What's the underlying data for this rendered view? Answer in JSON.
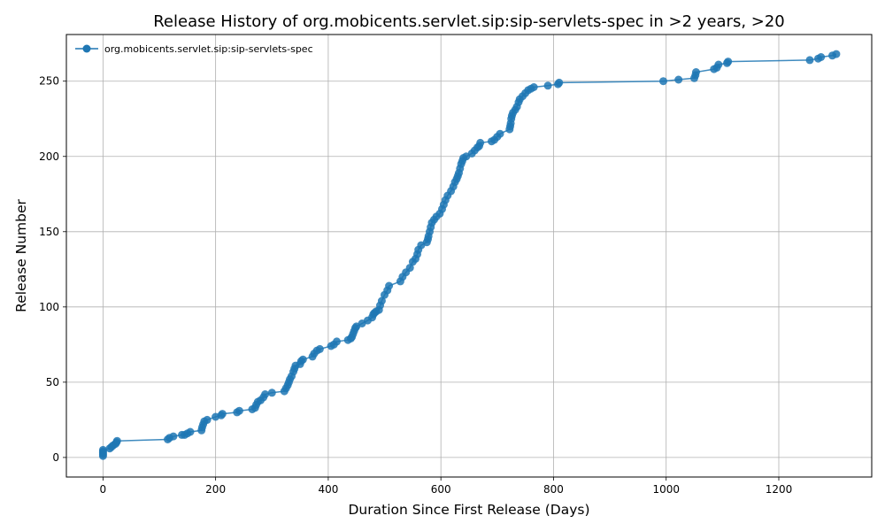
{
  "chart_data": {
    "type": "line",
    "title": "Release History of org.mobicents.servlet.sip:sip-servlets-spec in >2 years, >20",
    "xlabel": "Duration Since First Release (Days)",
    "ylabel": "Release Number",
    "xlim": [
      -65,
      1365
    ],
    "ylim": [
      -13,
      281
    ],
    "xticks": [
      0,
      200,
      400,
      600,
      800,
      1000,
      1200
    ],
    "yticks": [
      0,
      50,
      100,
      150,
      200,
      250
    ],
    "grid": true,
    "legend_position": "top-left",
    "series": [
      {
        "name": "org.mobicents.servlet.sip:sip-servlets-spec",
        "color": "#1f77b4",
        "x": [
          0,
          0,
          0,
          0,
          0,
          12,
          15,
          18,
          22,
          24,
          25,
          115,
          118,
          125,
          140,
          145,
          150,
          155,
          175,
          176,
          178,
          180,
          185,
          200,
          210,
          212,
          238,
          242,
          265,
          270,
          272,
          275,
          280,
          285,
          288,
          300,
          322,
          325,
          328,
          330,
          332,
          335,
          338,
          340,
          342,
          350,
          352,
          355,
          372,
          375,
          380,
          385,
          405,
          410,
          415,
          435,
          440,
          442,
          444,
          446,
          448,
          450,
          460,
          470,
          478,
          480,
          482,
          485,
          490,
          492,
          495,
          500,
          505,
          508,
          528,
          532,
          538,
          545,
          550,
          555,
          558,
          560,
          565,
          575,
          577,
          578,
          580,
          582,
          584,
          588,
          592,
          598,
          602,
          605,
          608,
          612,
          618,
          622,
          625,
          628,
          630,
          632,
          634,
          636,
          638,
          640,
          645,
          655,
          660,
          665,
          668,
          670,
          690,
          695,
          700,
          705,
          722,
          723,
          724,
          725,
          726,
          728,
          732,
          735,
          738,
          740,
          745,
          750,
          755,
          760,
          765,
          790,
          808,
          810,
          995,
          1022,
          1050,
          1052,
          1053,
          1085,
          1090,
          1093,
          1108,
          1110,
          1255,
          1270,
          1275,
          1295,
          1302
        ],
        "y": [
          1,
          2,
          3,
          4,
          5,
          6,
          7,
          8,
          9,
          10,
          11,
          12,
          13,
          14,
          15,
          15,
          16,
          17,
          18,
          20,
          22,
          24,
          25,
          27,
          28,
          29,
          30,
          31,
          32,
          33,
          35,
          37,
          38,
          40,
          42,
          43,
          44,
          46,
          48,
          50,
          52,
          54,
          57,
          59,
          61,
          62,
          64,
          65,
          67,
          69,
          71,
          72,
          74,
          75,
          77,
          78,
          79,
          80,
          82,
          84,
          86,
          87,
          89,
          91,
          93,
          95,
          96,
          97,
          98,
          101,
          104,
          108,
          111,
          114,
          117,
          120,
          123,
          126,
          130,
          132,
          135,
          138,
          141,
          143,
          145,
          147,
          150,
          153,
          156,
          158,
          160,
          162,
          165,
          168,
          171,
          174,
          177,
          180,
          183,
          185,
          187,
          189,
          192,
          195,
          197,
          199,
          200,
          202,
          204,
          206,
          207,
          209,
          210,
          211,
          213,
          215,
          218,
          220,
          222,
          225,
          227,
          229,
          231,
          233,
          236,
          238,
          240,
          242,
          244,
          245,
          246,
          247,
          248,
          249,
          250,
          251,
          252,
          254,
          256,
          258,
          259,
          261,
          262,
          263,
          264,
          265,
          266,
          267,
          268
        ]
      }
    ]
  }
}
